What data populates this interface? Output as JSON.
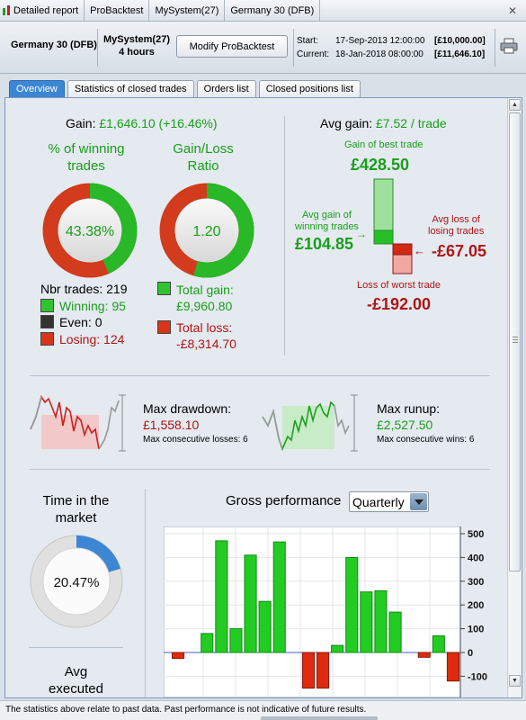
{
  "breadcrumbs": [
    "Detailed report",
    "ProBacktest",
    "MySystem(27)",
    "Germany 30 (DFB)"
  ],
  "header": {
    "instrument": "Germany 30 (DFB)",
    "system_name": "MySystem(27)",
    "timeframe": "4 hours",
    "modify_button": "Modify ProBacktest",
    "start_label": "Start:",
    "start_date": "17-Sep-2013 12:00:00",
    "start_amount": "[£10,000.00]",
    "current_label": "Current:",
    "current_date": "18-Jan-2018 08:00:00",
    "current_amount": "[£11,646.10]"
  },
  "tabs": [
    "Overview",
    "Statistics of closed trades",
    "Orders list",
    "Closed positions list"
  ],
  "overview": {
    "gain_label": "Gain:",
    "gain_value": "£1,646.10 (+16.46%)",
    "winning_title_1": "% of winning",
    "winning_title_2": "trades",
    "winning_pct": "43.38%",
    "winning_fraction": 0.4338,
    "ratio_title_1": "Gain/Loss",
    "ratio_title_2": "Ratio",
    "ratio_value": "1.20",
    "ratio_fraction": 0.545,
    "nbr_trades": "Nbr trades: 219",
    "winning": "Winning: 95",
    "even": "Even: 0",
    "losing": "Losing: 124",
    "total_gain_label": "Total gain:",
    "total_gain": "£9,960.80",
    "total_loss_label": "Total loss:",
    "total_loss": "-£8,314.70",
    "avg_gain_label": "Avg gain:",
    "avg_gain_value": "£7.52 / trade",
    "best_trade_label": "Gain of best trade",
    "best_trade": "£428.50",
    "avg_win_label_1": "Avg gain of",
    "avg_win_label_2": "winning trades",
    "avg_win": "£104.85",
    "avg_loss_label_1": "Avg loss of",
    "avg_loss_label_2": "losing trades",
    "avg_loss": "-£67.05",
    "worst_trade_label": "Loss of worst trade",
    "worst_trade": "-£192.00",
    "max_drawdown_label": "Max drawdown:",
    "max_drawdown": "£1,558.10",
    "max_consec_losses": "Max consecutive losses: 6",
    "max_runup_label": "Max runup:",
    "max_runup": "£2,527.50",
    "max_consec_wins": "Max consecutive wins: 6",
    "time_in_market_1": "Time in the",
    "time_in_market_2": "market",
    "time_in_market": "20.47%",
    "time_fraction": 0.2047,
    "avg_executed_1": "Avg",
    "avg_executed_2": "executed",
    "gross_perf_label": "Gross performance",
    "period_select": "Quarterly"
  },
  "colors": {
    "green": "#1a9e1a",
    "red": "#b01414",
    "accent": "#3d86d4",
    "bar_green": "#22cc22",
    "bar_red": "#dd2a10"
  },
  "chart_data": {
    "type": "bar",
    "title": "Gross performance",
    "values": [
      -25,
      0,
      80,
      470,
      100,
      410,
      215,
      465,
      0,
      -150,
      -150,
      30,
      400,
      255,
      260,
      170,
      0,
      -20,
      70,
      -120
    ],
    "yticks": [
      500,
      400,
      300,
      200,
      100,
      0,
      -100
    ],
    "ylim": [
      -120,
      500
    ],
    "grid": true
  },
  "footer": "The statistics above relate to past data. Past performance is not indicative of future results."
}
